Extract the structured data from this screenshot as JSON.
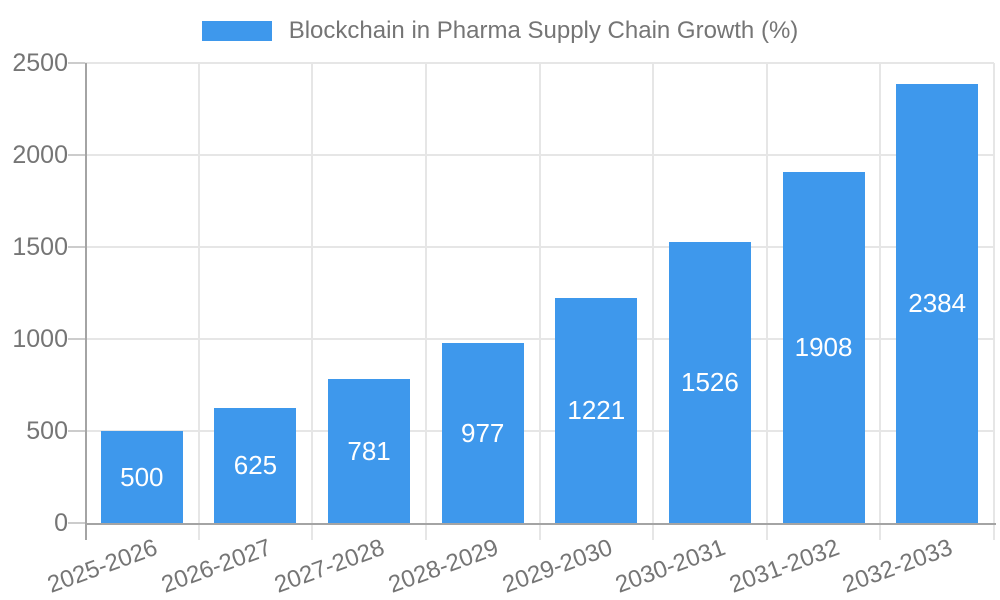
{
  "chart_data": {
    "type": "bar",
    "title": "Blockchain in Pharma Supply Chain Growth (%)",
    "legend": {
      "position": "top",
      "entries": [
        "Blockchain in Pharma Supply Chain Growth (%)"
      ]
    },
    "categories": [
      "2025-2026",
      "2026-2027",
      "2027-2028",
      "2028-2029",
      "2029-2030",
      "2030-2031",
      "2031-2032",
      "2032-2033"
    ],
    "values": [
      500,
      625,
      781,
      977,
      1221,
      1526,
      1908,
      2384
    ],
    "value_labels": [
      "500",
      "625",
      "781",
      "977",
      "1221",
      "1526",
      "1908",
      "2384"
    ],
    "xlabel": "",
    "ylabel": "",
    "ylim": [
      0,
      2500
    ],
    "yticks": [
      0,
      500,
      1000,
      1500,
      2000,
      2500
    ],
    "grid": true,
    "colors": {
      "bar": "#3e98ec",
      "bar_value_text": "#ffffff",
      "axis_text": "#757575",
      "gridline": "#e6e6e6",
      "axis_line": "#a4a4a4",
      "tick_mark": "#cccccc",
      "background": "#ffffff"
    }
  }
}
